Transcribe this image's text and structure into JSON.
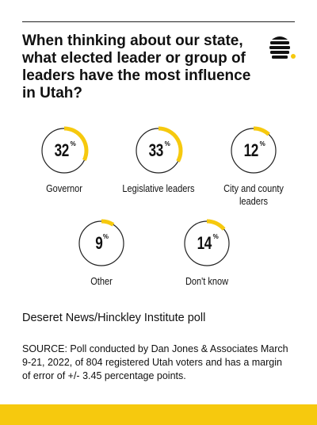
{
  "title": "When thinking about our state, what elected leader or group of leaders have the most influence in Utah?",
  "colors": {
    "accent": "#f6c90e",
    "ring": "#222222"
  },
  "chart_data": {
    "type": "pie",
    "title": "When thinking about our state, what elected leader or group of leaders have the most influence in Utah?",
    "unit": "%",
    "categories": [
      "Governor",
      "Legislative leaders",
      "City and county leaders",
      "Other",
      "Don't know"
    ],
    "values": [
      32,
      33,
      12,
      9,
      14
    ],
    "labels": [
      {
        "value": "32",
        "symbol": "%"
      },
      {
        "value": "33",
        "symbol": "%"
      },
      {
        "value": "12",
        "symbol": "%"
      },
      {
        "value": "9",
        "symbol": "%"
      },
      {
        "value": "14",
        "symbol": "%"
      }
    ]
  },
  "source_title": "Deseret News/Hinckley Institute poll",
  "source_note": "SOURCE: Poll conducted by Dan Jones & Associates March 9-21, 2022, of 804 registered Utah voters and has a margin of error of +/- 3.45 percentage points."
}
